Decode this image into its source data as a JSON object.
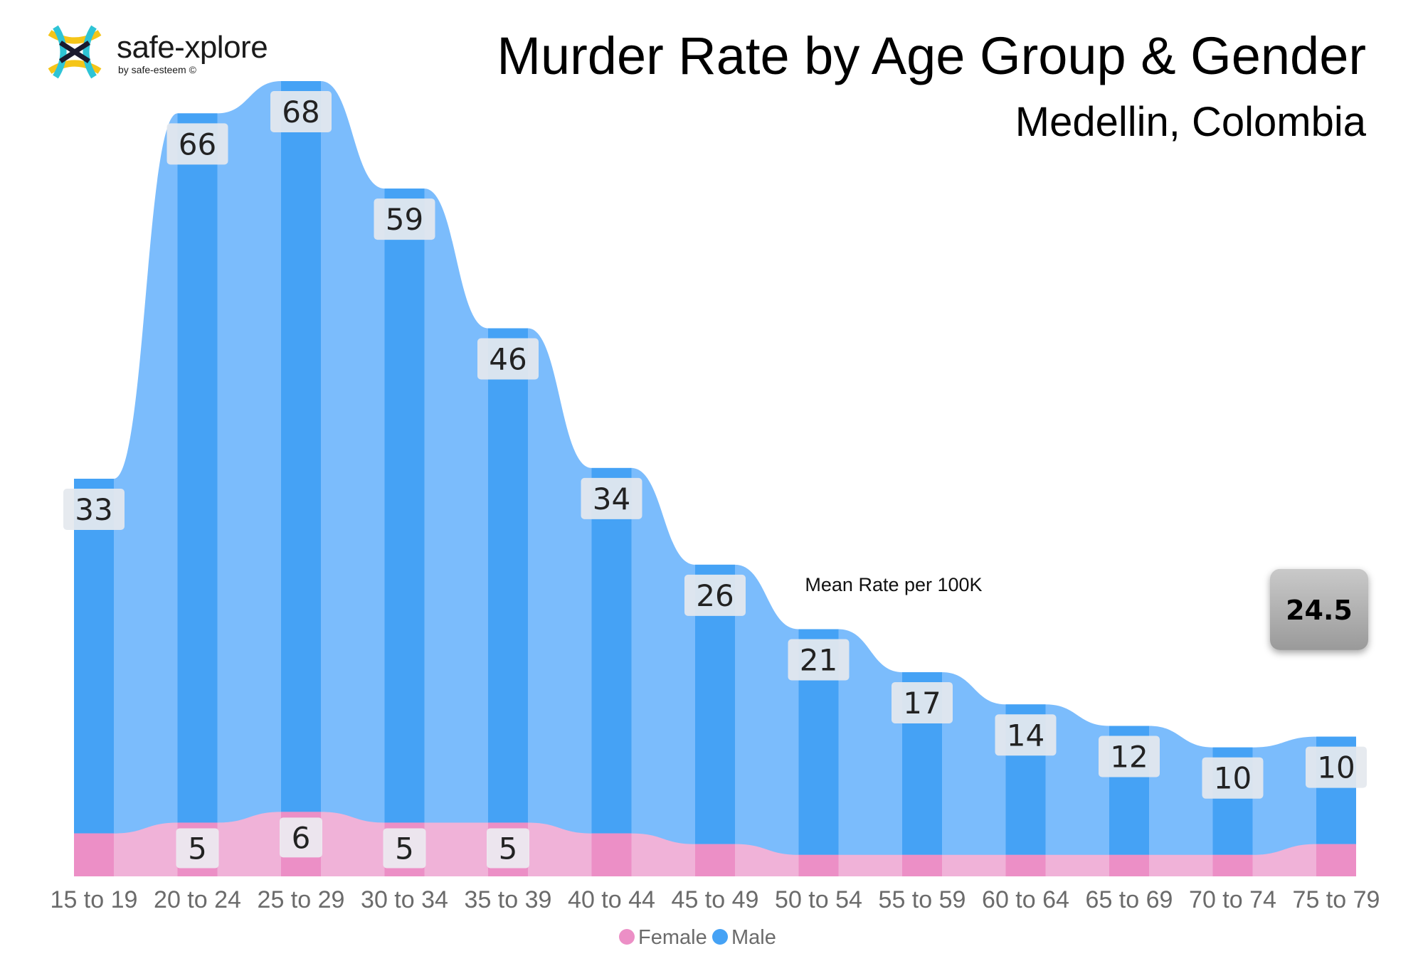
{
  "brand": {
    "name": "safe-xplore",
    "tagline": "by safe-esteem ©",
    "colors": [
      "#f5c518",
      "#2ec4d6",
      "#1a1a2e"
    ]
  },
  "header": {
    "title": "Murder Rate by Age Group & Gender",
    "subtitle": "Medellin, Colombia"
  },
  "chart_data": {
    "type": "bar",
    "title": "Murder Rate by Age Group & Gender",
    "subtitle": "Medellin, Colombia",
    "xlabel": "",
    "ylabel": "",
    "ylim": [
      0,
      74
    ],
    "categories": [
      "15 to 19",
      "20 to 24",
      "25 to 29",
      "30 to 34",
      "35 to 39",
      "40 to 44",
      "45 to 49",
      "50 to 54",
      "55 to 59",
      "60 to 64",
      "65 to 69",
      "70 to 74",
      "75 to 79"
    ],
    "series": [
      {
        "name": "Female",
        "color": "#f0b2d8",
        "bar_color": "#ec8fc6",
        "values": [
          4,
          5,
          6,
          5,
          5,
          4,
          3,
          2,
          2,
          2,
          2,
          2,
          3
        ],
        "labels": [
          "",
          "5",
          "6",
          "5",
          "5",
          "",
          "",
          "",
          "",
          "",
          "",
          "",
          ""
        ]
      },
      {
        "name": "Male",
        "color": "#7bbcfc",
        "bar_color": "#45a2f5",
        "values": [
          33,
          66,
          68,
          59,
          46,
          34,
          26,
          21,
          17,
          14,
          12,
          10,
          10
        ],
        "labels": [
          "33",
          "66",
          "68",
          "59",
          "46",
          "34",
          "26",
          "21",
          "17",
          "14",
          "12",
          "10",
          "10"
        ]
      }
    ],
    "reference_line": {
      "label": "Mean Rate per 100K",
      "value": 24.5,
      "display": "24.5"
    },
    "legend": {
      "position": "bottom-center",
      "items": [
        "Female",
        "Male"
      ]
    },
    "grid": false
  }
}
